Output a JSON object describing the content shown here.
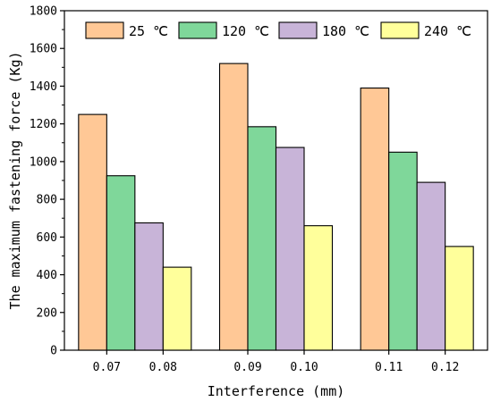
{
  "chart_data": {
    "type": "bar",
    "title": "",
    "xlabel": "Interference (mm)",
    "ylabel": "The maximum fastening force (Kg)",
    "x_tick_labels": [
      "0.07",
      "0.08",
      "0.09",
      "0.10",
      "0.11",
      "0.12"
    ],
    "ylim": [
      0,
      1800
    ],
    "y_ticks": [
      0,
      200,
      400,
      600,
      800,
      1000,
      1200,
      1400,
      1600,
      1800
    ],
    "legend_position": "top",
    "groups": [
      "0.07-0.08",
      "0.09-0.10",
      "0.11-0.12"
    ],
    "series": [
      {
        "name": "25 ℃",
        "color": "#FFC896",
        "values": [
          1250,
          1520,
          1390
        ]
      },
      {
        "name": "120 ℃",
        "color": "#7FD79A",
        "values": [
          925,
          1185,
          1050
        ]
      },
      {
        "name": "180 ℃",
        "color": "#C8B4D8",
        "values": [
          675,
          1075,
          890
        ]
      },
      {
        "name": "240 ℃",
        "color": "#FFFF9B",
        "values": [
          440,
          660,
          550
        ]
      }
    ],
    "grid": false
  }
}
